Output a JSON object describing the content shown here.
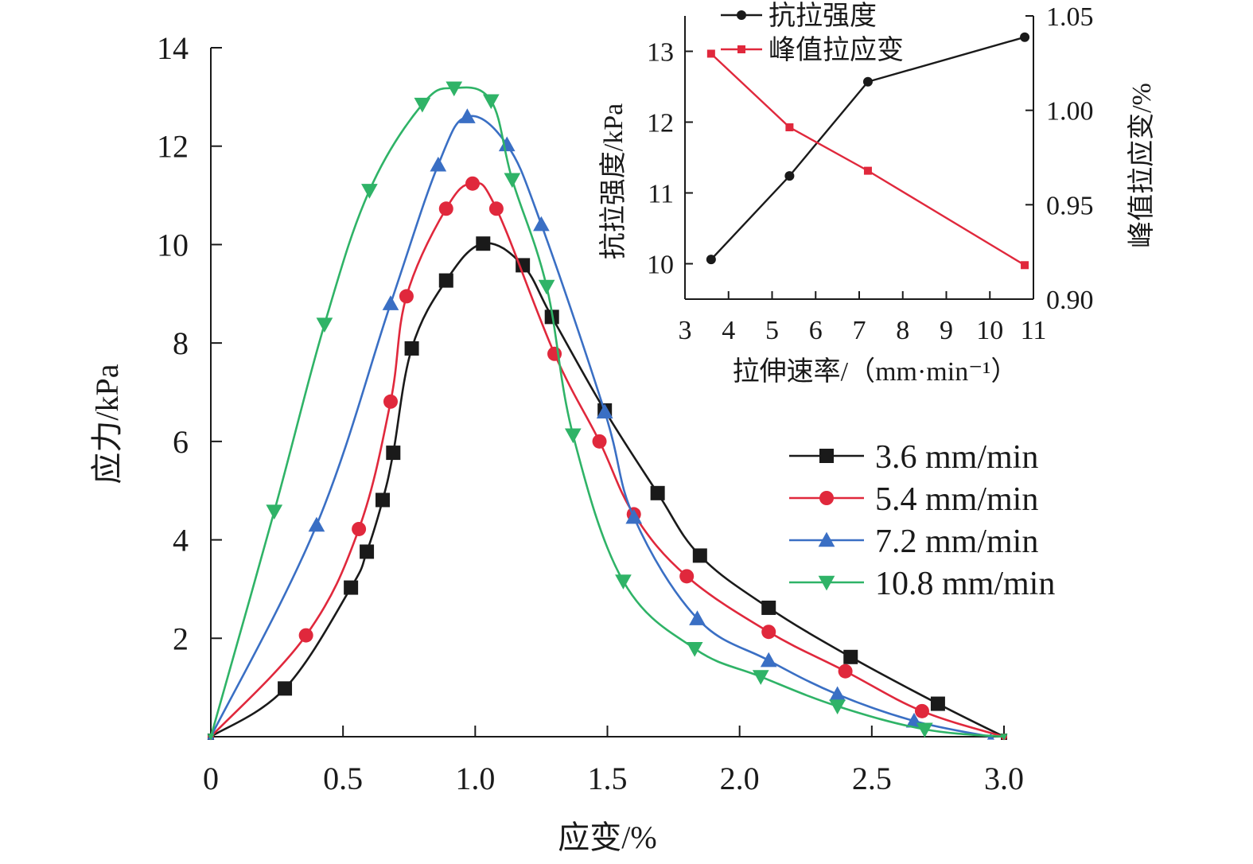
{
  "colors": {
    "axis": "#1a1a1a",
    "series": [
      "#1a1a1a",
      "#e0283c",
      "#3a6fc4",
      "#2fb367"
    ]
  },
  "chart_data": [
    {
      "type": "line",
      "xlabel": "应变/%",
      "ylabel": "应力/kPa",
      "xlim": [
        0,
        3.0
      ],
      "ylim": [
        0,
        14
      ],
      "x_ticks": [
        "0",
        "0.5",
        "1.0",
        "1.5",
        "2.0",
        "2.5",
        "3.0"
      ],
      "y_ticks": [
        "2",
        "4",
        "6",
        "8",
        "10",
        "12",
        "14"
      ],
      "legend_position": "right",
      "series": [
        {
          "name": "3.6 mm/min",
          "marker": "square",
          "points": [
            [
              0,
              0
            ],
            [
              0.28,
              0.98
            ],
            [
              0.53,
              3.03
            ],
            [
              0.59,
              3.76
            ],
            [
              0.65,
              4.81
            ],
            [
              0.69,
              5.77
            ],
            [
              0.76,
              7.89
            ],
            [
              0.89,
              9.27
            ],
            [
              1.03,
              10.02
            ],
            [
              1.18,
              9.58
            ],
            [
              1.29,
              8.53
            ],
            [
              1.49,
              6.63
            ],
            [
              1.69,
              4.95
            ],
            [
              1.85,
              3.68
            ],
            [
              2.11,
              2.62
            ],
            [
              2.42,
              1.62
            ],
            [
              2.75,
              0.67
            ],
            [
              3.0,
              0
            ]
          ]
        },
        {
          "name": "5.4 mm/min",
          "marker": "circle",
          "points": [
            [
              0,
              0
            ],
            [
              0.36,
              2.06
            ],
            [
              0.56,
              4.22
            ],
            [
              0.68,
              6.81
            ],
            [
              0.74,
              8.95
            ],
            [
              0.89,
              10.73
            ],
            [
              0.99,
              11.24
            ],
            [
              1.08,
              10.73
            ],
            [
              1.3,
              7.78
            ],
            [
              1.47,
              6.0
            ],
            [
              1.6,
              4.52
            ],
            [
              1.8,
              3.26
            ],
            [
              2.11,
              2.13
            ],
            [
              2.4,
              1.33
            ],
            [
              2.69,
              0.52
            ],
            [
              3.0,
              0
            ]
          ]
        },
        {
          "name": "7.2 mm/min",
          "marker": "triangle-up",
          "points": [
            [
              0,
              0
            ],
            [
              0.4,
              4.3
            ],
            [
              0.68,
              8.8
            ],
            [
              0.86,
              11.62
            ],
            [
              0.97,
              12.6
            ],
            [
              1.12,
              12.03
            ],
            [
              1.25,
              10.41
            ],
            [
              1.49,
              6.6
            ],
            [
              1.6,
              4.46
            ],
            [
              1.84,
              2.4
            ],
            [
              2.11,
              1.55
            ],
            [
              2.37,
              0.86
            ],
            [
              2.66,
              0.32
            ],
            [
              2.95,
              0
            ]
          ]
        },
        {
          "name": "10.8 mm/min",
          "marker": "triangle-down",
          "points": [
            [
              0,
              0
            ],
            [
              0.24,
              4.58
            ],
            [
              0.43,
              8.38
            ],
            [
              0.6,
              11.1
            ],
            [
              0.8,
              12.85
            ],
            [
              0.92,
              13.18
            ],
            [
              1.06,
              12.92
            ],
            [
              1.14,
              11.32
            ],
            [
              1.27,
              9.15
            ],
            [
              1.37,
              6.13
            ],
            [
              1.56,
              3.16
            ],
            [
              1.83,
              1.79
            ],
            [
              2.08,
              1.22
            ],
            [
              2.37,
              0.62
            ],
            [
              2.7,
              0.15
            ],
            [
              3.0,
              0
            ]
          ]
        }
      ]
    },
    {
      "type": "line",
      "xlabel": "拉伸速率/（mm·min⁻¹）",
      "ylabel": "抗拉强度/kPa",
      "ylabel_right": "峰值拉应变/%",
      "xlim": [
        3,
        11
      ],
      "ylim": [
        9.5,
        13.5
      ],
      "ylim_right": [
        0.9,
        1.05
      ],
      "x_ticks": [
        "3",
        "4",
        "5",
        "6",
        "7",
        "8",
        "9",
        "10",
        "11"
      ],
      "y_ticks": [
        "10",
        "11",
        "12",
        "13"
      ],
      "y_ticks_right": [
        "0.90",
        "0.95",
        "1.00",
        "1.05"
      ],
      "legend_position": "top-left",
      "series": [
        {
          "name": "抗拉强度",
          "axis": "left",
          "marker": "circle",
          "points": [
            [
              3.6,
              10.06
            ],
            [
              5.4,
              11.24
            ],
            [
              7.2,
              12.57
            ],
            [
              10.8,
              13.2
            ]
          ]
        },
        {
          "name": "峰值拉应变",
          "axis": "right",
          "marker": "square",
          "points": [
            [
              3.6,
              1.03
            ],
            [
              5.4,
              0.991
            ],
            [
              7.2,
              0.968
            ],
            [
              10.8,
              0.918
            ]
          ]
        }
      ]
    }
  ]
}
